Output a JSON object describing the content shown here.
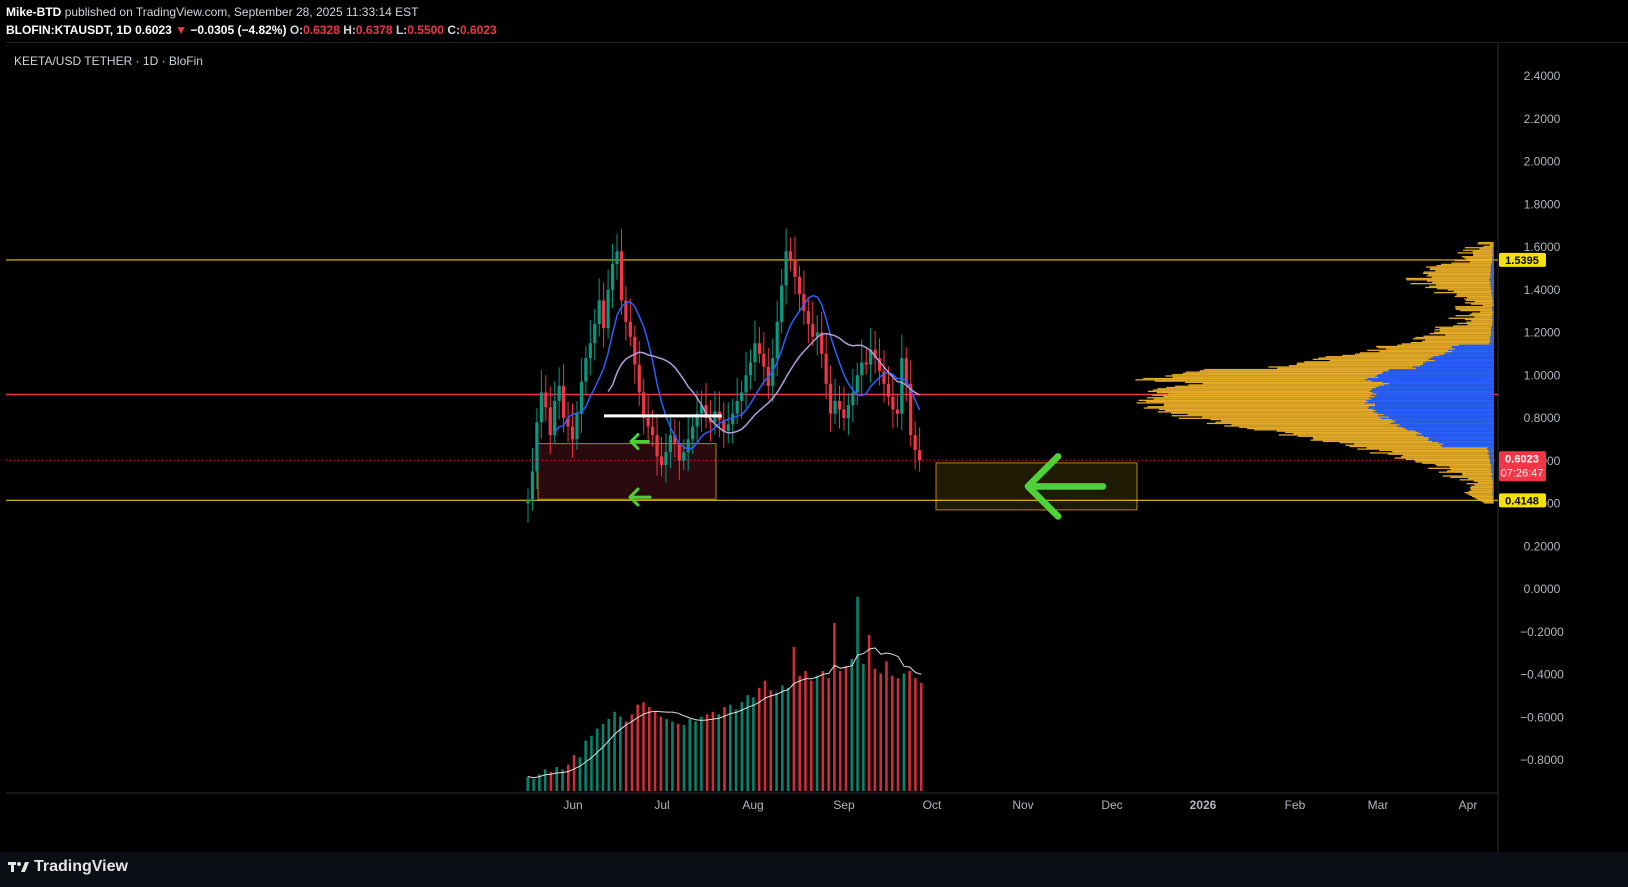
{
  "header": {
    "author": "Mike-BTD",
    "published": "published on TradingView.com, September 28, 2025 11:33:14 EST",
    "symbol": "BLOFIN:KTAUSDT, 1D",
    "last": "0.6023",
    "change": "−0.0305 (−4.82%)",
    "o_label": "O:",
    "o": "0.6328",
    "h_label": "H:",
    "h": "0.6378",
    "l_label": "L:",
    "l": "0.5500",
    "c_label": "C:",
    "c": "0.6023"
  },
  "overlay_title": "KEETA/USD TETHER · 1D · BloFin",
  "brand": "TradingView",
  "colors": {
    "up": "#089981",
    "down": "#f23645",
    "ma_blue": "#2962ff",
    "ma_pink": "#b39ddb",
    "support": "#e6c400",
    "resistance": "#f23645",
    "vp_blue": "#2962ff",
    "vp_orange": "#f0b429",
    "arrow": "#4cd137"
  },
  "chart_data": {
    "type": "candlestick",
    "price_axis": {
      "ticks": [
        "2.4000",
        "2.2000",
        "2.0000",
        "1.8000",
        "1.6000",
        "1.4000",
        "1.2000",
        "1.0000",
        "0.8000",
        "0.6000",
        "0.4000",
        "0.2000",
        "0.0000",
        "−0.2000",
        "−0.4000",
        "−0.6000",
        "−0.8000"
      ],
      "ylim": [
        -0.95,
        2.55
      ]
    },
    "time_axis": {
      "ticks": [
        "Jun",
        "Jul",
        "Aug",
        "Sep",
        "Oct",
        "Nov",
        "Dec",
        "2026",
        "Feb",
        "Mar",
        "Apr"
      ]
    },
    "price_labels": {
      "resistance": "1.5395",
      "current": "0.6023",
      "countdown": "07:26:47",
      "support": "0.4148"
    },
    "levels": {
      "resistance": 1.5395,
      "red_line": 0.91,
      "support": 0.4148,
      "current": 0.6023
    },
    "candles_close": [
      0.42,
      0.55,
      0.78,
      0.92,
      0.85,
      0.72,
      0.88,
      0.95,
      0.8,
      0.76,
      0.7,
      0.82,
      0.97,
      1.08,
      1.15,
      1.24,
      1.35,
      1.22,
      1.4,
      1.52,
      1.58,
      1.35,
      1.25,
      1.18,
      1.05,
      0.92,
      0.8,
      0.76,
      0.72,
      0.62,
      0.58,
      0.64,
      0.72,
      0.68,
      0.6,
      0.64,
      0.7,
      0.76,
      0.82,
      0.86,
      0.8,
      0.78,
      0.83,
      0.79,
      0.74,
      0.77,
      0.82,
      0.88,
      0.92,
      1.0,
      1.06,
      1.15,
      1.1,
      1.04,
      0.95,
      1.08,
      1.25,
      1.42,
      1.58,
      1.54,
      1.46,
      1.38,
      1.3,
      1.24,
      1.18,
      1.2,
      1.1,
      0.96,
      0.82,
      0.88,
      0.84,
      0.8,
      0.86,
      0.92,
      1.0,
      1.06,
      1.05,
      1.12,
      1.08,
      1.02,
      0.96,
      0.9,
      0.84,
      0.82,
      1.08,
      0.96,
      0.72,
      0.65,
      0.6023
    ],
    "ma_blue_levels": "moving average line",
    "ma_pink_levels": "moving average line",
    "volume": [
      0.12,
      0.1,
      0.14,
      0.18,
      0.16,
      0.2,
      0.18,
      0.22,
      0.3,
      0.28,
      0.42,
      0.46,
      0.52,
      0.56,
      0.6,
      0.66,
      0.62,
      0.58,
      0.64,
      0.72,
      0.74,
      0.7,
      0.66,
      0.62,
      0.6,
      0.58,
      0.56,
      0.55,
      0.6,
      0.58,
      0.62,
      0.64,
      0.66,
      0.64,
      0.7,
      0.72,
      0.68,
      0.74,
      0.8,
      0.78,
      0.86,
      0.92,
      0.84,
      0.82,
      0.88,
      0.86,
      1.2,
      0.96,
      1.0,
      0.92,
      0.96,
      1.0,
      0.94,
      1.4,
      1.0,
      1.04,
      1.1,
      1.62,
      1.06,
      1.3,
      1.02,
      0.98,
      1.08,
      0.96,
      0.94,
      0.98,
      1.0,
      0.94,
      0.9
    ]
  }
}
